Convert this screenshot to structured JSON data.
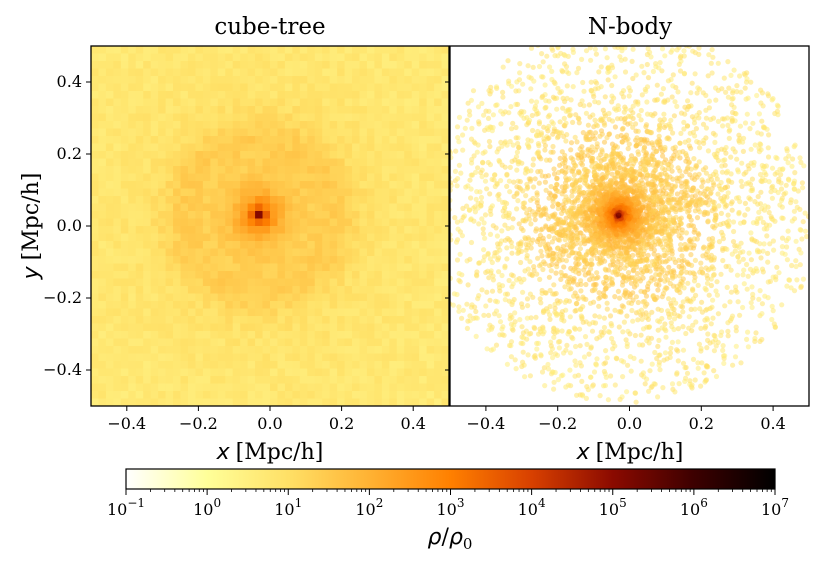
{
  "chart_data": [
    {
      "type": "heatmap",
      "title": "cube-tree",
      "xlabel_var": "x",
      "xlabel_unit": "[Mpc/h]",
      "ylabel_var": "y",
      "ylabel_unit": "[Mpc/h]",
      "xlim": [
        -0.5,
        0.5
      ],
      "ylim": [
        -0.5,
        0.5
      ],
      "xticks": [
        -0.4,
        -0.2,
        0.0,
        0.2,
        0.4
      ],
      "yticks": [
        -0.4,
        -0.2,
        0.0,
        0.2,
        0.4
      ],
      "xtick_labels": [
        "−0.4",
        "−0.2",
        "0.0",
        "0.2",
        "0.4"
      ],
      "ytick_labels": [
        "−0.4",
        "−0.2",
        "0.0",
        "0.2",
        "0.4"
      ],
      "peak_center": [
        -0.03,
        0.03
      ],
      "peak_log_density": 5.2,
      "background_log_density": 0.5,
      "rendering": "adaptive cells"
    },
    {
      "type": "heatmap",
      "title": "N-body",
      "xlabel_var": "x",
      "xlabel_unit": "[Mpc/h]",
      "xlim": [
        -0.5,
        0.5
      ],
      "ylim": [
        -0.5,
        0.5
      ],
      "xticks": [
        -0.4,
        -0.2,
        0.0,
        0.2,
        0.4
      ],
      "xtick_labels": [
        "−0.4",
        "−0.2",
        "0.0",
        "0.2",
        "0.4"
      ],
      "peak_center": [
        -0.03,
        0.03
      ],
      "peak_log_density": 5.2,
      "background_log_density": 0.5,
      "rendering": "particles"
    }
  ],
  "colorbar": {
    "cmap": "afmhot_r",
    "range_log10": [
      -1,
      7
    ],
    "tick_exponents": [
      "−1",
      "0",
      "1",
      "2",
      "3",
      "4",
      "5",
      "6",
      "7"
    ],
    "tick_base": "10",
    "label_num": "ρ",
    "label_den": "ρ",
    "label_den_sub": "0"
  }
}
